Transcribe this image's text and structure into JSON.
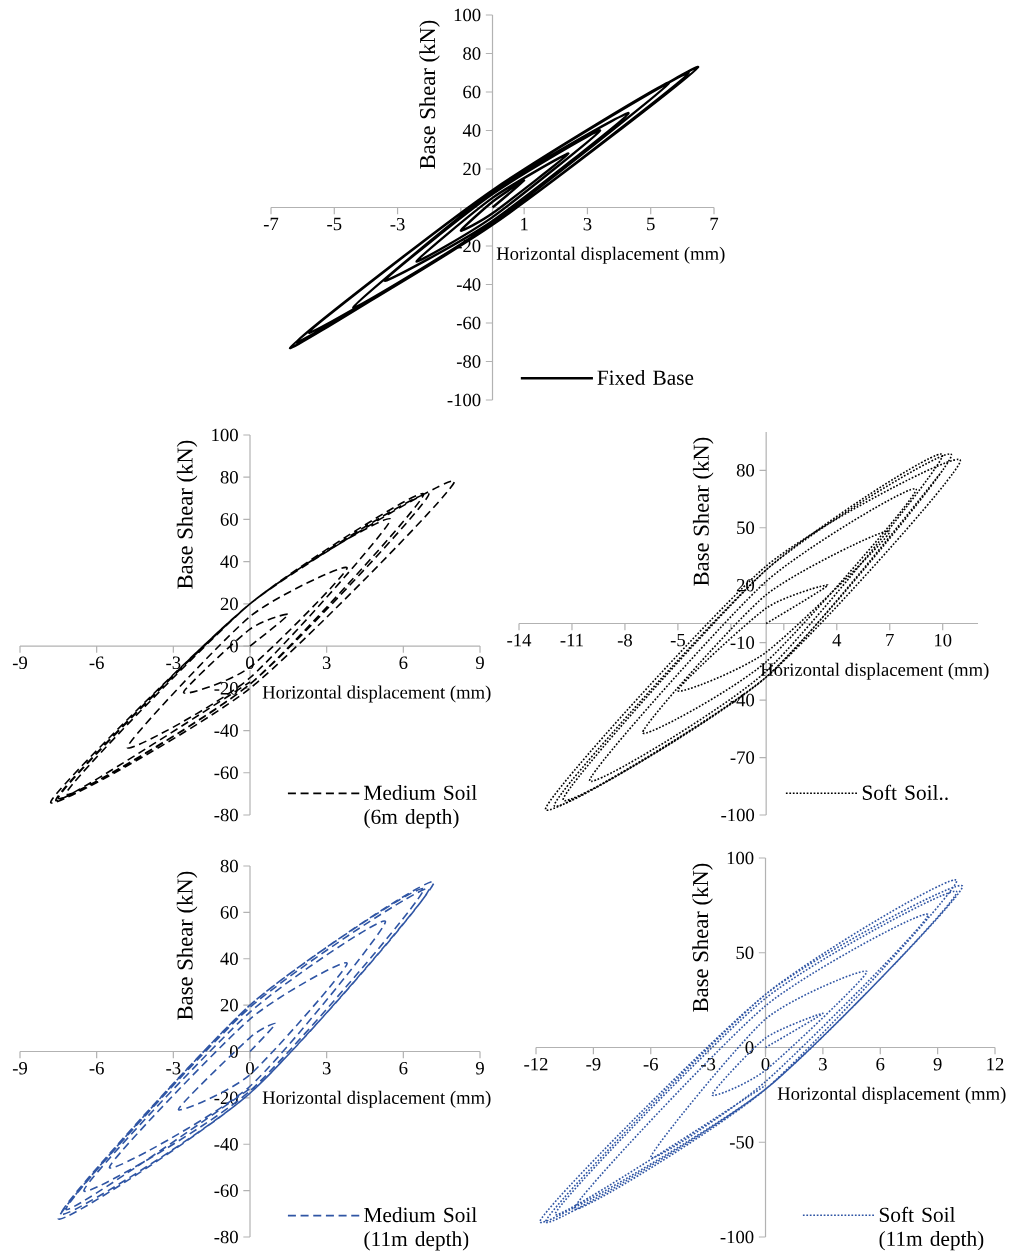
{
  "chart_data": [
    {
      "type": "line",
      "xlabel": "Horizontal displacement (mm)",
      "ylabel": "Base Shear (kN)",
      "xlim": [
        -7,
        7
      ],
      "ylim": [
        -100,
        100
      ],
      "xticks": [
        -7,
        -5,
        -3,
        {
          "value": -1,
          "label": null
        },
        1,
        3,
        5,
        7
      ],
      "yticks": [
        -100,
        -80,
        -60,
        -40,
        -20,
        {
          "value": 0,
          "label": null
        },
        20,
        40,
        60,
        80,
        100
      ],
      "legend": "bottom right",
      "series": [
        {
          "name": "Fixed Base",
          "color": "#000000",
          "line_style": "solid",
          "x": [
            0,
            1.0,
            0,
            -1.0,
            0,
            2.4,
            0,
            -2.4,
            0,
            3.4,
            0,
            -3.4,
            0,
            4.3,
            0,
            -4.4,
            0,
            5.6,
            0,
            -5.8,
            0,
            6.2,
            0,
            -6.2,
            0,
            6.5,
            0,
            -6.4,
            0
          ],
          "values": [
            0,
            14,
            3,
            -12,
            -3,
            28,
            5,
            -28,
            -5,
            40,
            7,
            -38,
            -7,
            49,
            8,
            -52,
            -8,
            65,
            9,
            -65,
            -9,
            70,
            9,
            -70,
            -9,
            73,
            9,
            -73,
            -9
          ]
        }
      ]
    },
    {
      "type": "line",
      "xlabel": "Horizontal displacement (mm)",
      "ylabel": "Base Shear (kN)",
      "xlim": [
        -9,
        9
      ],
      "ylim": [
        -80,
        100
      ],
      "xticks": [
        -9,
        -6,
        -3,
        0,
        3,
        6,
        9
      ],
      "yticks": [
        -80,
        -60,
        -40,
        -20,
        0,
        20,
        40,
        60,
        80,
        100
      ],
      "legend": "bottom right",
      "series": [
        {
          "name": "Medium Soil (6m depth)",
          "color": "#000000",
          "line_style": "dashed",
          "x": [
            0,
            1.5,
            0,
            -2.6,
            0,
            3.8,
            0,
            -4.8,
            0,
            5.5,
            0,
            -7.2,
            0,
            6.8,
            0,
            -7.5,
            0,
            7.0,
            0,
            -7.8,
            0,
            8.0,
            0,
            -7.6,
            0
          ],
          "values": [
            0,
            15,
            8,
            -22,
            -10,
            37,
            14,
            -48,
            -15,
            60,
            20,
            -70,
            -18,
            72,
            20,
            -72,
            -18,
            72,
            20,
            -74,
            -20,
            78,
            20,
            -73,
            -17
          ]
        }
      ]
    },
    {
      "type": "line",
      "xlabel": "Horizontal displacement (mm)",
      "ylabel": "Base Shear (kN)",
      "xlim": [
        -14,
        12
      ],
      "ylim": [
        -100,
        100
      ],
      "xticks": [
        -14,
        -11,
        -8,
        -5,
        {
          "value": -2,
          "label": null
        },
        {
          "value": 1,
          "label": null
        },
        4,
        7,
        10
      ],
      "yticks": [
        -100,
        -70,
        -40,
        -10,
        20,
        50,
        80
      ],
      "legend": "bottom right",
      "series": [
        {
          "name": "Soft Soil..",
          "color": "#000000",
          "line_style": "dotted",
          "x": [
            0,
            3.5,
            0,
            -5,
            0,
            7,
            0,
            -7,
            0,
            8.5,
            0,
            -10,
            0,
            10,
            0,
            -11.5,
            0,
            10.5,
            0,
            -12,
            0,
            11,
            0,
            -12.5,
            0,
            10
          ],
          "values": [
            0,
            20,
            8,
            -35,
            -15,
            48,
            15,
            -57,
            -20,
            70,
            22,
            -82,
            -25,
            88,
            28,
            -92,
            -28,
            88,
            28,
            -95,
            -28,
            85,
            30,
            -97,
            -28,
            80
          ]
        }
      ]
    },
    {
      "type": "line",
      "xlabel": "Horizontal displacement (mm)",
      "ylabel": "Base Shear (kN)",
      "xlim": [
        -9,
        9
      ],
      "ylim": [
        -80,
        80
      ],
      "xticks": [
        -9,
        -6,
        -3,
        0,
        3,
        6,
        9
      ],
      "yticks": [
        -80,
        -60,
        -40,
        -20,
        0,
        20,
        40,
        60,
        80
      ],
      "legend": "bottom right",
      "series": [
        {
          "name": "Medium Soil (11m depth)",
          "color": "#2f55a4",
          "line_style": "dashed",
          "x": [
            0,
            1,
            0,
            -2.8,
            0,
            3.8,
            0,
            -5.5,
            0,
            5.3,
            0,
            -6.5,
            0,
            6.8,
            0,
            -7.4,
            0,
            7.2,
            0,
            -7.5,
            0,
            7.0,
            0,
            -7.2,
            0
          ],
          "values": [
            0,
            12,
            6,
            -25,
            -10,
            38,
            14,
            -50,
            -15,
            56,
            17,
            -60,
            -17,
            70,
            20,
            -70,
            -18,
            73,
            20,
            -72,
            -18,
            70,
            19,
            -68,
            -16
          ]
        }
      ]
    },
    {
      "type": "line",
      "xlabel": "Horizontal displacement (mm)",
      "ylabel": "Base Shear (kN)",
      "xlim": [
        -12,
        12
      ],
      "ylim": [
        -100,
        100
      ],
      "xticks": [
        -12,
        -9,
        -6,
        -3,
        0,
        3,
        6,
        9,
        12
      ],
      "yticks": [
        -100,
        -50,
        0,
        50,
        100
      ],
      "legend": "bottom right",
      "series": [
        {
          "name": "Soft Soil (11m depth)",
          "color": "#2f55a4",
          "line_style": "dotted",
          "x": [
            0,
            3,
            0,
            -2.8,
            0,
            5.3,
            0,
            -6,
            0,
            8.5,
            0,
            -10,
            0,
            10,
            0,
            -11.5,
            0,
            10.3,
            0,
            -11.8,
            0,
            10,
            0,
            -11,
            0
          ],
          "values": [
            0,
            18,
            5,
            -25,
            -12,
            40,
            15,
            -58,
            -18,
            70,
            22,
            -85,
            -22,
            88,
            28,
            -92,
            -22,
            85,
            28,
            -92,
            -22,
            82,
            26,
            -88,
            -20
          ]
        }
      ]
    }
  ]
}
